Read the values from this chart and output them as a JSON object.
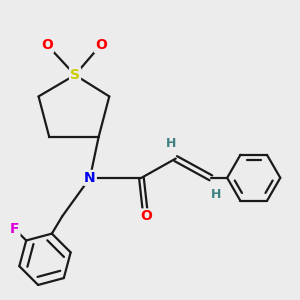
{
  "background_color": "#ececec",
  "atom_colors": {
    "S": "#cccc00",
    "O": "#ff0000",
    "N": "#0000ee",
    "F": "#dd00dd",
    "C": "#000000",
    "H": "#408080"
  },
  "line_color": "#1a1a1a",
  "line_width": 1.6
}
